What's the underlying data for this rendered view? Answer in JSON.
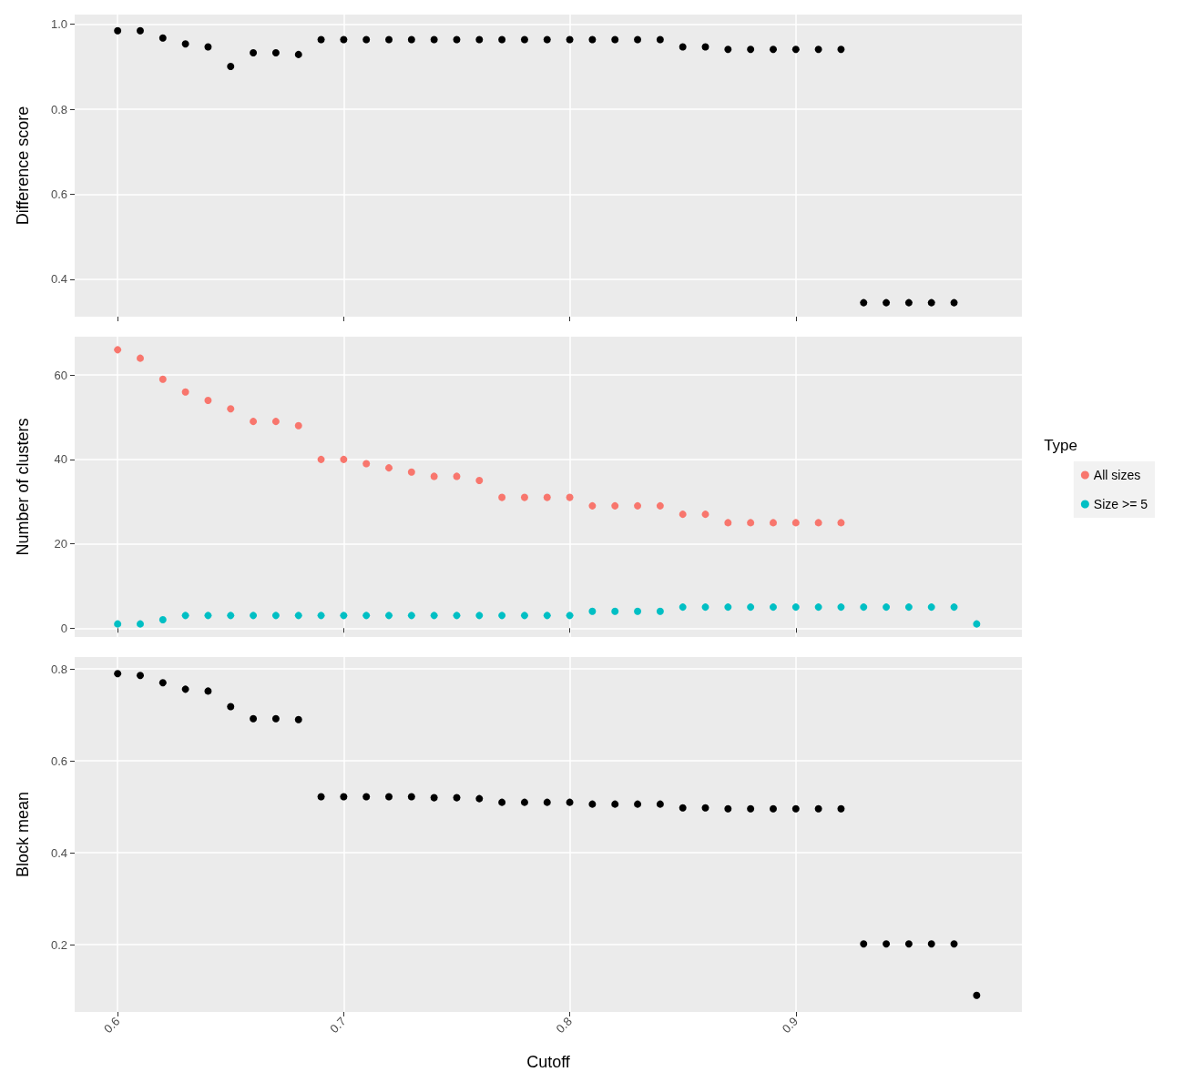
{
  "chart_data": [
    {
      "type": "scatter",
      "ylabel": "Difference score",
      "xlim": [
        0.581,
        1.0
      ],
      "xticks": [
        0.6,
        0.7,
        0.8,
        0.9
      ],
      "ylim": [
        0.312,
        1.023
      ],
      "yticks": [
        0.4,
        0.6,
        0.8,
        {
          "value": 1,
          "label": "1.0"
        }
      ],
      "tick_labels": "y",
      "grid": true,
      "marker": "circle",
      "series": [
        {
          "color": "#000000",
          "x": [
            0.6,
            0.61,
            0.62,
            0.63,
            0.64,
            0.65,
            0.66,
            0.67,
            0.68,
            0.69,
            0.7,
            0.71,
            0.72,
            0.73,
            0.74,
            0.75,
            0.76,
            0.77,
            0.78,
            0.79,
            0.8,
            0.81,
            0.82,
            0.83,
            0.84,
            0.85,
            0.86,
            0.87,
            0.88,
            0.89,
            0.9,
            0.91,
            0.92,
            0.93,
            0.94,
            0.95,
            0.96,
            0.97
          ],
          "values": [
            0.985,
            0.985,
            0.968,
            0.954,
            0.947,
            0.901,
            0.933,
            0.933,
            0.929,
            0.964,
            0.964,
            0.964,
            0.964,
            0.964,
            0.964,
            0.964,
            0.964,
            0.964,
            0.964,
            0.964,
            0.964,
            0.964,
            0.964,
            0.964,
            0.964,
            0.947,
            0.947,
            0.941,
            0.941,
            0.941,
            0.941,
            0.941,
            0.941,
            0.345,
            0.345,
            0.345,
            0.345,
            0.345
          ]
        }
      ]
    },
    {
      "type": "scatter",
      "ylabel": "Number of clusters",
      "legend_title": "Type",
      "legend": "right",
      "xlim": [
        0.581,
        1.0
      ],
      "xticks": [
        0.6,
        0.7,
        0.8,
        0.9
      ],
      "ylim": [
        -2.1,
        69.1
      ],
      "yticks": [
        0,
        20,
        40,
        60
      ],
      "tick_labels": "y",
      "grid": true,
      "marker": "circle",
      "series": [
        {
          "name": "All sizes",
          "color": "#f8766d",
          "x": [
            0.6,
            0.61,
            0.62,
            0.63,
            0.64,
            0.65,
            0.66,
            0.67,
            0.68,
            0.69,
            0.7,
            0.71,
            0.72,
            0.73,
            0.74,
            0.75,
            0.76,
            0.77,
            0.78,
            0.79,
            0.8,
            0.81,
            0.82,
            0.83,
            0.84,
            0.85,
            0.86,
            0.87,
            0.88,
            0.89,
            0.9,
            0.91,
            0.92
          ],
          "values": [
            66,
            64,
            59,
            56,
            54,
            52,
            49,
            49,
            48,
            40,
            40,
            39,
            38,
            37,
            36,
            36,
            35,
            31,
            31,
            31,
            31,
            29,
            29,
            29,
            29,
            27,
            27,
            25,
            25,
            25,
            25,
            25,
            25
          ]
        },
        {
          "name": "Size >= 5",
          "color": "#00bfc4",
          "x": [
            0.6,
            0.61,
            0.62,
            0.63,
            0.64,
            0.65,
            0.66,
            0.67,
            0.68,
            0.69,
            0.7,
            0.71,
            0.72,
            0.73,
            0.74,
            0.75,
            0.76,
            0.77,
            0.78,
            0.79,
            0.8,
            0.81,
            0.82,
            0.83,
            0.84,
            0.85,
            0.86,
            0.87,
            0.88,
            0.89,
            0.9,
            0.91,
            0.92,
            0.93,
            0.94,
            0.95,
            0.96,
            0.97,
            0.98
          ],
          "values": [
            1,
            1,
            2,
            3,
            3,
            3,
            3,
            3,
            3,
            3,
            3,
            3,
            3,
            3,
            3,
            3,
            3,
            3,
            3,
            3,
            3,
            4,
            4,
            4,
            4,
            5,
            5,
            5,
            5,
            5,
            5,
            5,
            5,
            5,
            5,
            5,
            5,
            5,
            1
          ]
        }
      ]
    },
    {
      "type": "scatter",
      "xlabel": "Cutoff",
      "ylabel": "Block mean",
      "xlim": [
        0.581,
        1.0
      ],
      "xticks": [
        0.6,
        0.7,
        0.8,
        0.9
      ],
      "ylim": [
        0.054,
        0.826
      ],
      "yticks": [
        0.2,
        0.4,
        0.6,
        0.8
      ],
      "grid": true,
      "marker": "circle",
      "series": [
        {
          "color": "#000000",
          "x": [
            0.6,
            0.61,
            0.62,
            0.63,
            0.64,
            0.65,
            0.66,
            0.67,
            0.68,
            0.69,
            0.7,
            0.71,
            0.72,
            0.73,
            0.74,
            0.75,
            0.76,
            0.77,
            0.78,
            0.79,
            0.8,
            0.81,
            0.82,
            0.83,
            0.84,
            0.85,
            0.86,
            0.87,
            0.88,
            0.89,
            0.9,
            0.91,
            0.92,
            0.93,
            0.94,
            0.95,
            0.96,
            0.97,
            0.98
          ],
          "values": [
            0.79,
            0.786,
            0.77,
            0.756,
            0.752,
            0.718,
            0.692,
            0.692,
            0.69,
            0.522,
            0.522,
            0.522,
            0.522,
            0.522,
            0.52,
            0.52,
            0.518,
            0.51,
            0.51,
            0.51,
            0.51,
            0.506,
            0.506,
            0.506,
            0.506,
            0.498,
            0.498,
            0.496,
            0.496,
            0.496,
            0.496,
            0.496,
            0.496,
            0.202,
            0.202,
            0.202,
            0.202,
            0.202,
            0.09
          ]
        }
      ]
    }
  ]
}
